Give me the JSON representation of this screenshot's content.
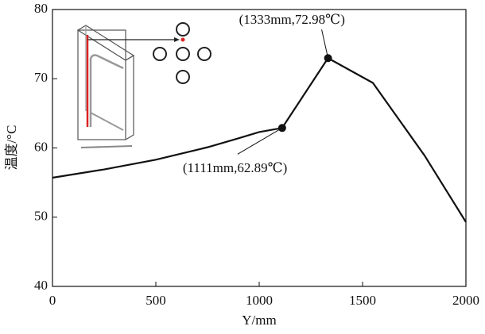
{
  "chart_data": {
    "type": "line",
    "xlabel": "Y/mm",
    "ylabel": "温度/°C",
    "x": [
      0,
      250,
      500,
      750,
      900,
      1000,
      1111,
      1333,
      1550,
      1800,
      2000
    ],
    "values": [
      55.7,
      56.9,
      58.3,
      60.1,
      61.4,
      62.3,
      62.89,
      72.98,
      69.4,
      58.9,
      49.3
    ],
    "color": "#111111",
    "xlim": [
      0,
      2000
    ],
    "xticks": [
      0,
      500,
      1000,
      1500,
      2000
    ],
    "ylim": [
      40,
      80
    ],
    "yticks": [
      40,
      50,
      60,
      70,
      80
    ],
    "annotations": [
      {
        "text": "(1333mm,72.98℃)",
        "x": 1333,
        "y": 72.98
      },
      {
        "text": "(1111mm,62.89℃)",
        "x": 1111,
        "y": 62.89
      }
    ]
  }
}
